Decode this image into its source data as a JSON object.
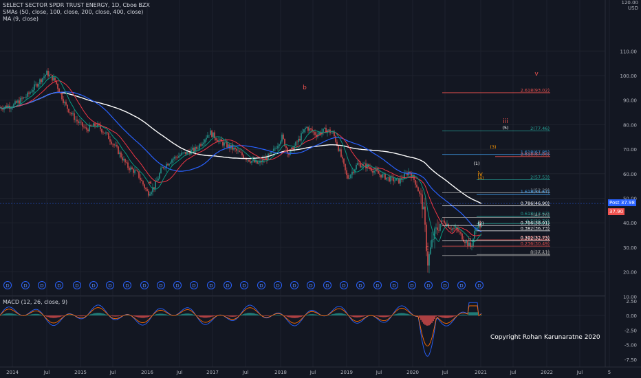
{
  "legend": {
    "title": "SELECT SECTOR SPDR TRUST ENERGY, 1D, Cboe BZX",
    "smas": "SMAs (50, close, 100, close, 200, close, 400, close)",
    "ma": "MA (9, close)"
  },
  "macd_legend": "MACD (12, 26, close, 9)",
  "copyright": "Copyright Rohan Karunaratne 2020",
  "price_scale_header": {
    "line1": "120.00",
    "line2": "USD"
  },
  "price_tags": {
    "post_label": "Post",
    "post_value": "37.98",
    "last_value": "37.90"
  },
  "price_axis_labels": [
    "110.00",
    "100.00",
    "90.00",
    "80.00",
    "70.00",
    "60.00",
    "50.00",
    "40.00",
    "30.00",
    "20.00",
    "10.00"
  ],
  "macd_axis_labels": [
    "2.50",
    "0.00",
    "-2.50",
    "-5.00",
    "-7.50"
  ],
  "time_axis_labels": [
    "2014",
    "Jul",
    "2015",
    "Jul",
    "2016",
    "Jul",
    "2017",
    "Jul",
    "2018",
    "Jul",
    "2019",
    "Jul",
    "2020",
    "Jul",
    "2021",
    "Jul",
    "2022",
    "Jul",
    "5"
  ],
  "wave_labels": [
    "a",
    "b",
    "c",
    "ii",
    "iii",
    "iv",
    "v",
    "(1)",
    "(2)",
    "(3)",
    "(4)",
    "(5)"
  ],
  "fib_labels": [
    {
      "text": "2.618(93.02)",
      "color": "#ef5350"
    },
    {
      "text": "2(77.46)",
      "color": "#26a69a"
    },
    {
      "text": "1.618(67.85)",
      "color": "#42a5f5"
    },
    {
      "text": "2.618(67.00)",
      "color": "#ef5350"
    },
    {
      "text": "2(57.53)",
      "color": "#26a69a"
    },
    {
      "text": "1(52.29)",
      "color": "#9e9e9e"
    },
    {
      "text": "1.618(51.67)",
      "color": "#42a5f5"
    },
    {
      "text": "0.786(46.90)",
      "color": "#ffffff"
    },
    {
      "text": "0.618(42.67)",
      "color": "#26a69a"
    },
    {
      "text": "1(42.20)",
      "color": "#9e9e9e"
    },
    {
      "text": "0.5(39.70)",
      "color": "#26a69a"
    },
    {
      "text": "0.786(38.91)",
      "color": "#ffffff"
    },
    {
      "text": "0.382(36.73)",
      "color": "#ffffff"
    },
    {
      "text": "0.236(33.05)",
      "color": "#ef5350"
    },
    {
      "text": "0.382(32.73)",
      "color": "#ffffff"
    },
    {
      "text": "0.236(30.49)",
      "color": "#ef5350"
    },
    {
      "text": "0(27.11)",
      "color": "#9e9e9e"
    },
    {
      "text": "0(26.67)",
      "color": "#9e9e9e"
    }
  ],
  "dividend_marker": "D",
  "dividend_count": 29,
  "colors": {
    "background": "#131722",
    "up": "#26a69a",
    "down": "#ef5350",
    "sma50": "#089981",
    "sma100": "#f23645",
    "sma200": "#2962ff",
    "sma400": "#ffffff"
  }
}
